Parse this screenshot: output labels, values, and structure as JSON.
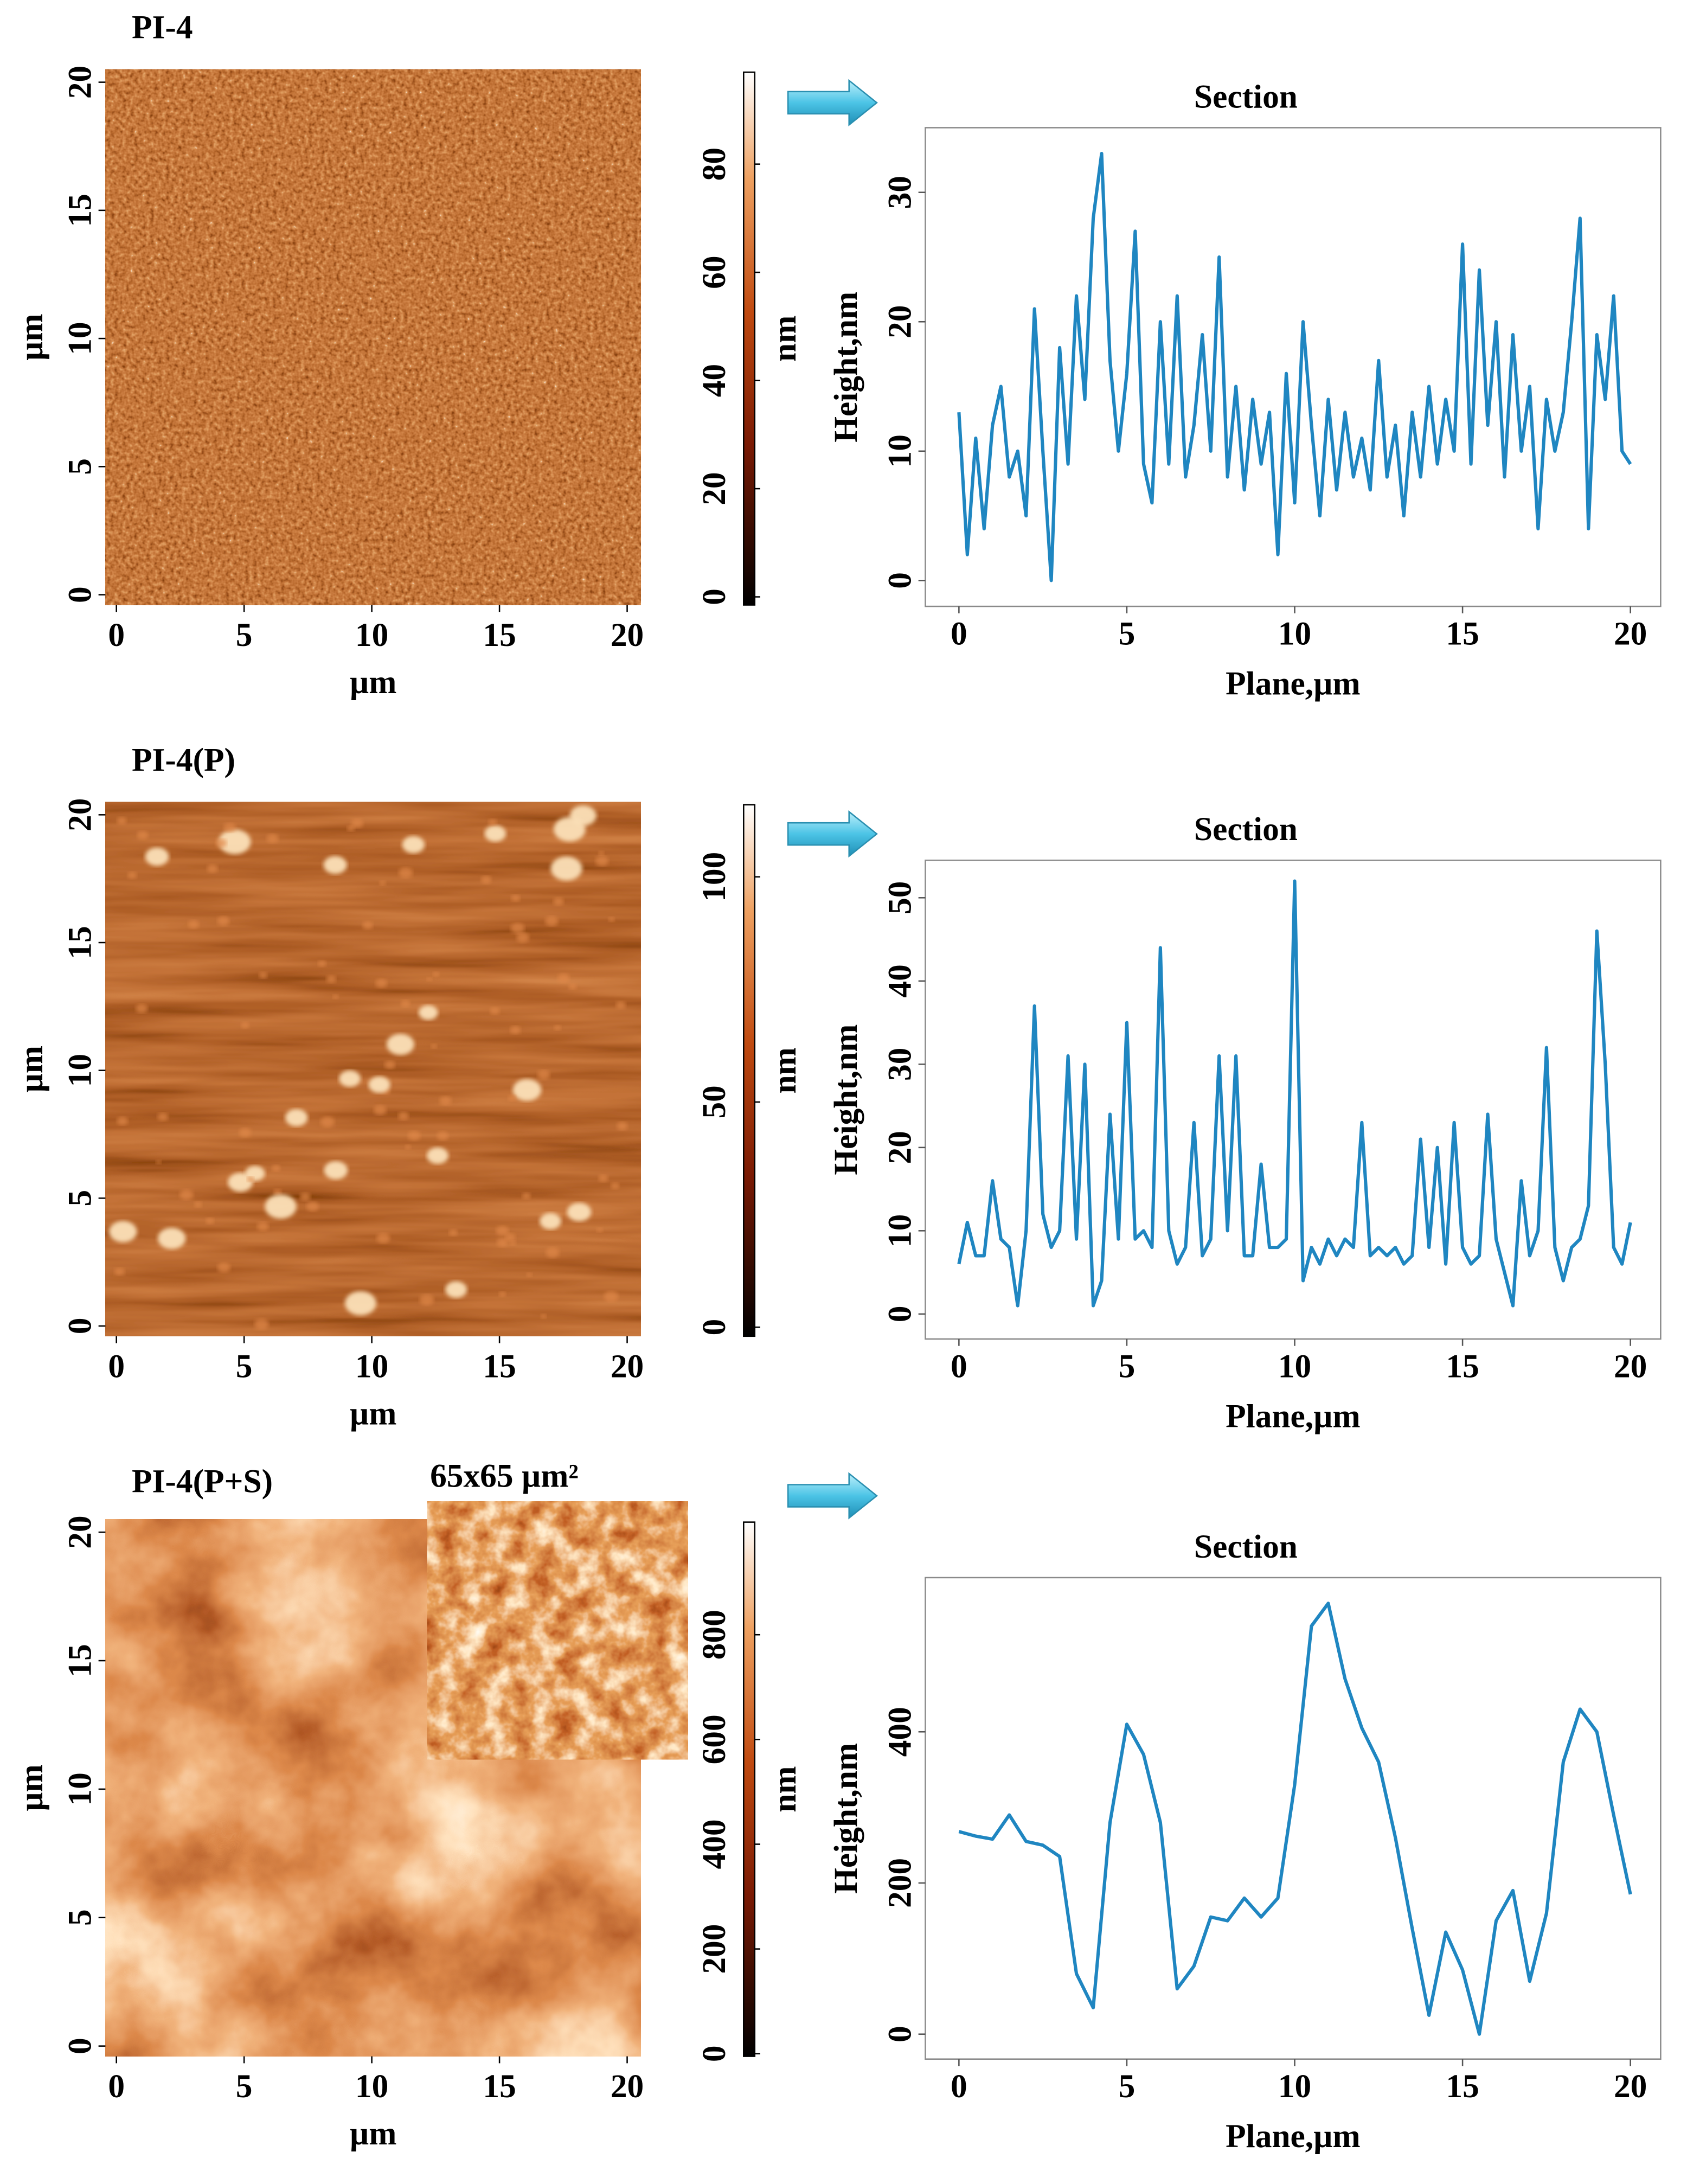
{
  "chart_data": [
    {
      "type": "image",
      "title": "PI-4",
      "xlabel": "µm",
      "ylabel": "µm",
      "xlim": [
        -0.43,
        20.54
      ],
      "ylim": [
        -0.4,
        20.5
      ],
      "xticks": [
        0,
        5,
        10,
        15,
        20
      ],
      "yticks": [
        0,
        5,
        10,
        15,
        20
      ]
    },
    {
      "type": "colorbar",
      "ylabel": "nm",
      "ylim": [
        -1.5,
        97
      ],
      "yticks": [
        0,
        20,
        40,
        60,
        80
      ]
    },
    {
      "type": "line",
      "title": "Section",
      "xlabel": "Plane,µm",
      "ylabel": "Height,nm",
      "color": "#1f86c1",
      "xlim": [
        -1,
        20.9
      ],
      "ylim": [
        -2,
        35
      ],
      "xticks": [
        0,
        5,
        10,
        15,
        20
      ],
      "yticks": [
        0,
        10,
        20,
        30
      ],
      "x": [
        0,
        0.25,
        0.5,
        0.75,
        1,
        1.25,
        1.5,
        1.75,
        2,
        2.25,
        2.5,
        2.75,
        3,
        3.25,
        3.5,
        3.75,
        4,
        4.25,
        4.5,
        4.75,
        5,
        5.25,
        5.5,
        5.75,
        6,
        6.25,
        6.5,
        6.75,
        7,
        7.25,
        7.5,
        7.75,
        8,
        8.25,
        8.5,
        8.75,
        9,
        9.25,
        9.5,
        9.75,
        10,
        10.25,
        10.5,
        10.75,
        11,
        11.25,
        11.5,
        11.75,
        12,
        12.25,
        12.5,
        12.75,
        13,
        13.25,
        13.5,
        13.75,
        14,
        14.25,
        14.5,
        14.75,
        15,
        15.25,
        15.5,
        15.75,
        16,
        16.25,
        16.5,
        16.75,
        17,
        17.25,
        17.5,
        17.75,
        18,
        18.25,
        18.5,
        18.75,
        19,
        19.25,
        19.5,
        19.75,
        20
      ],
      "values": [
        13,
        2,
        11,
        4,
        12,
        15,
        8,
        10,
        5,
        21,
        10,
        0,
        18,
        9,
        22,
        14,
        28,
        33,
        17,
        10,
        16,
        27,
        9,
        6,
        20,
        9,
        22,
        8,
        12,
        19,
        10,
        25,
        8,
        15,
        7,
        14,
        9,
        13,
        2,
        16,
        6,
        20,
        12,
        5,
        14,
        7,
        13,
        8,
        11,
        7,
        17,
        8,
        12,
        5,
        13,
        8,
        15,
        9,
        14,
        10,
        26,
        9,
        24,
        12,
        20,
        8,
        19,
        10,
        15,
        4,
        14,
        10,
        13,
        20,
        28,
        4,
        19,
        14,
        22,
        10,
        9
      ]
    },
    {
      "type": "image",
      "title": "PI-4(P)",
      "xlabel": "µm",
      "ylabel": "µm",
      "xlim": [
        -0.43,
        20.54
      ],
      "ylim": [
        -0.4,
        20.5
      ],
      "xticks": [
        0,
        5,
        10,
        15,
        20
      ],
      "yticks": [
        0,
        5,
        10,
        15,
        20
      ]
    },
    {
      "type": "colorbar",
      "ylabel": "nm",
      "ylim": [
        -2,
        116
      ],
      "yticks": [
        0,
        50,
        100
      ]
    },
    {
      "type": "line",
      "title": "Section",
      "xlabel": "Plane,µm",
      "ylabel": "Height,nm",
      "color": "#1f86c1",
      "xlim": [
        -1,
        20.9
      ],
      "ylim": [
        -3,
        54.5
      ],
      "xticks": [
        0,
        5,
        10,
        15,
        20
      ],
      "yticks": [
        0,
        10,
        20,
        30,
        40,
        50
      ],
      "x": [
        0,
        0.25,
        0.5,
        0.75,
        1,
        1.25,
        1.5,
        1.75,
        2,
        2.25,
        2.5,
        2.75,
        3,
        3.25,
        3.5,
        3.75,
        4,
        4.25,
        4.5,
        4.75,
        5,
        5.25,
        5.5,
        5.75,
        6,
        6.25,
        6.5,
        6.75,
        7,
        7.25,
        7.5,
        7.75,
        8,
        8.25,
        8.5,
        8.75,
        9,
        9.25,
        9.5,
        9.75,
        10,
        10.25,
        10.5,
        10.75,
        11,
        11.25,
        11.5,
        11.75,
        12,
        12.25,
        12.5,
        12.75,
        13,
        13.25,
        13.5,
        13.75,
        14,
        14.25,
        14.5,
        14.75,
        15,
        15.25,
        15.5,
        15.75,
        16,
        16.25,
        16.5,
        16.75,
        17,
        17.25,
        17.5,
        17.75,
        18,
        18.25,
        18.5,
        18.75,
        19,
        19.25,
        19.5,
        19.75,
        20
      ],
      "values": [
        6,
        11,
        7,
        7,
        16,
        9,
        8,
        1,
        10,
        37,
        12,
        8,
        10,
        31,
        9,
        30,
        1,
        4,
        24,
        9,
        35,
        9,
        10,
        8,
        44,
        10,
        6,
        8,
        23,
        7,
        9,
        31,
        10,
        31,
        7,
        7,
        18,
        8,
        8,
        9,
        52,
        4,
        8,
        6,
        9,
        7,
        9,
        8,
        23,
        7,
        8,
        7,
        8,
        6,
        7,
        21,
        8,
        20,
        6,
        23,
        8,
        6,
        7,
        24,
        9,
        5,
        1,
        16,
        7,
        10,
        32,
        8,
        4,
        8,
        9,
        13,
        46,
        30,
        8,
        6,
        11
      ]
    },
    {
      "type": "image",
      "title": "PI-4(P+S)",
      "inset_title": "65x65 µm²",
      "xlabel": "µm",
      "ylabel": "µm",
      "xlim": [
        -0.43,
        20.54
      ],
      "ylim": [
        -0.4,
        20.5
      ],
      "xticks": [
        0,
        5,
        10,
        15,
        20
      ],
      "yticks": [
        0,
        5,
        10,
        15,
        20
      ]
    },
    {
      "type": "colorbar",
      "ylabel": "nm",
      "ylim": [
        -5,
        1015
      ],
      "yticks": [
        0,
        200,
        400,
        600,
        800
      ]
    },
    {
      "type": "line",
      "title": "Section",
      "xlabel": "Plane,µm",
      "ylabel": "Height,nm",
      "color": "#1f86c1",
      "xlim": [
        -1,
        20.9
      ],
      "ylim": [
        -33,
        604
      ],
      "xticks": [
        0,
        5,
        10,
        15,
        20
      ],
      "yticks": [
        0,
        200,
        400
      ],
      "x": [
        0,
        0.5,
        1,
        1.5,
        2,
        2.5,
        3,
        3.5,
        4,
        4.5,
        5,
        5.5,
        6,
        6.5,
        7,
        7.5,
        8,
        8.5,
        9,
        9.5,
        10,
        10.5,
        11,
        11.5,
        12,
        12.5,
        13,
        13.5,
        14,
        14.5,
        15,
        15.5,
        16,
        16.5,
        17,
        17.5,
        18,
        18.5,
        19,
        19.5,
        20
      ],
      "values": [
        268,
        262,
        258,
        290,
        255,
        250,
        235,
        80,
        35,
        280,
        410,
        370,
        280,
        60,
        90,
        155,
        150,
        180,
        155,
        180,
        330,
        540,
        570,
        470,
        405,
        360,
        260,
        140,
        25,
        135,
        85,
        0,
        150,
        190,
        70,
        160,
        360,
        430,
        400,
        290,
        185
      ]
    }
  ]
}
